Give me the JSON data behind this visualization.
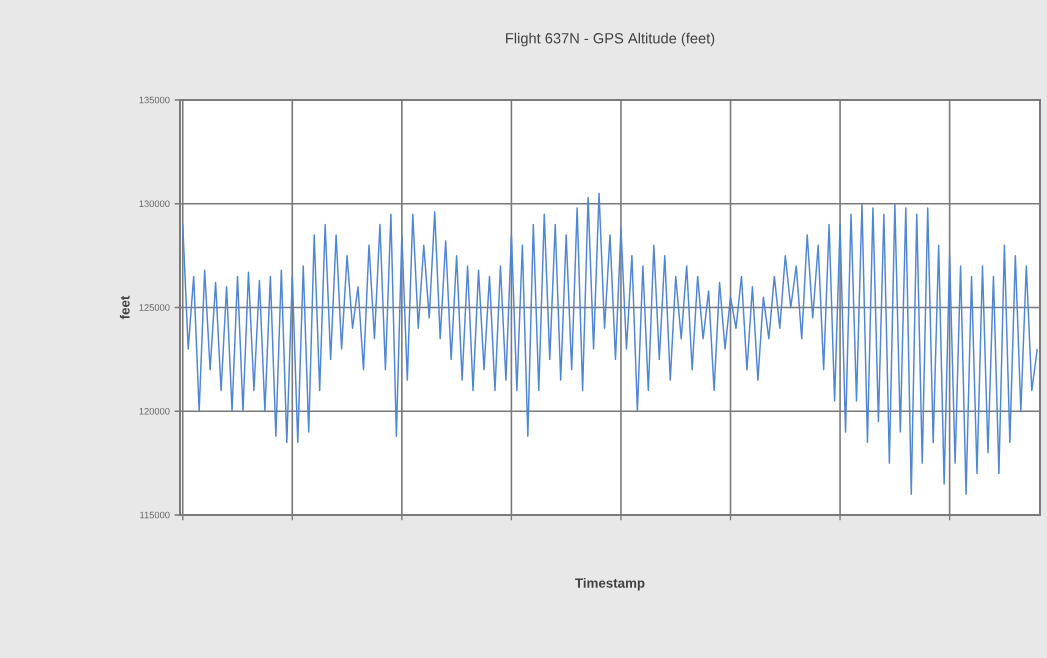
{
  "chart_data": {
    "type": "line",
    "title": "Flight 637N - GPS Altitude (feet)",
    "xlabel": "Timestamp",
    "ylabel": "feet",
    "categories": [
      null,
      null,
      null,
      null,
      null,
      null,
      null,
      null,
      null,
      null,
      null,
      null,
      null,
      null,
      null,
      null,
      null,
      null,
      null,
      null,
      null,
      null,
      null,
      null,
      null,
      null,
      null,
      null,
      null,
      null,
      null,
      null,
      null,
      null,
      null,
      null,
      null,
      null,
      null,
      null,
      null,
      null,
      null,
      null,
      null,
      null,
      null,
      null,
      null,
      null,
      null,
      null,
      null,
      null,
      null,
      null,
      null,
      null,
      null,
      null,
      null,
      null,
      null,
      null,
      null,
      null,
      null,
      null,
      null,
      null,
      null,
      null,
      null,
      null,
      null,
      null,
      null,
      null,
      null,
      null,
      null,
      null,
      null,
      null,
      null,
      null,
      null,
      null,
      null,
      null,
      null,
      null,
      null,
      null,
      null,
      null,
      null,
      null,
      null,
      null,
      null,
      null,
      null,
      null,
      null,
      null,
      null,
      null,
      null,
      null,
      null,
      null,
      null,
      null,
      null,
      null,
      null,
      null,
      null,
      null,
      null,
      null,
      null,
      null,
      null,
      null,
      null,
      null,
      null,
      null,
      null,
      null,
      null,
      null,
      null,
      null,
      null,
      null,
      null,
      null,
      null,
      null,
      null,
      null,
      null,
      null,
      null,
      null,
      null,
      null,
      null,
      null,
      null,
      null,
      null,
      null,
      null
    ],
    "ylim": [
      115000,
      135000
    ],
    "yticks": [
      115000,
      120000,
      125000,
      130000,
      135000
    ],
    "grid": true,
    "marker": "none",
    "line_style": "solid",
    "series": [
      {
        "color": "#4f86d6",
        "values": [
          129000,
          123000,
          126500,
          120000,
          126800,
          122000,
          126200,
          121000,
          126000,
          120000,
          126500,
          120000,
          126700,
          121000,
          126300,
          120000,
          126500,
          118800,
          126800,
          118500,
          126500,
          118500,
          127000,
          119000,
          128500,
          121000,
          129000,
          122500,
          128500,
          123000,
          127500,
          124000,
          126000,
          122000,
          128000,
          123500,
          129000,
          122000,
          129500,
          118800,
          128500,
          121500,
          129500,
          124000,
          128000,
          124500,
          129600,
          123500,
          128200,
          122500,
          127500,
          121500,
          127000,
          121000,
          126800,
          122000,
          126500,
          121000,
          127000,
          121500,
          128500,
          121000,
          128000,
          118800,
          129000,
          121000,
          129500,
          122500,
          129000,
          121500,
          128500,
          122000,
          129800,
          121000,
          130300,
          123000,
          130500,
          124000,
          128500,
          122500,
          128800,
          123000,
          127500,
          120000,
          127000,
          121000,
          128000,
          122500,
          127500,
          121500,
          126500,
          123500,
          127000,
          122000,
          126500,
          123500,
          125800,
          121000,
          126200,
          123000,
          125500,
          124000,
          126500,
          122000,
          126000,
          121500,
          125500,
          123500,
          126500,
          124000,
          127500,
          125000,
          127000,
          123500,
          128500,
          124500,
          128000,
          122000,
          129000,
          120500,
          129000,
          119000,
          129500,
          120500,
          130000,
          118500,
          129800,
          119500,
          129500,
          117500,
          130000,
          119000,
          129800,
          116000,
          129500,
          117500,
          129800,
          118500,
          128000,
          116500,
          127500,
          117500,
          127000,
          116000,
          126500,
          117000,
          127000,
          118000,
          126500,
          117000,
          128000,
          118500,
          127500,
          120000,
          127000,
          121000,
          123000
        ]
      }
    ]
  }
}
